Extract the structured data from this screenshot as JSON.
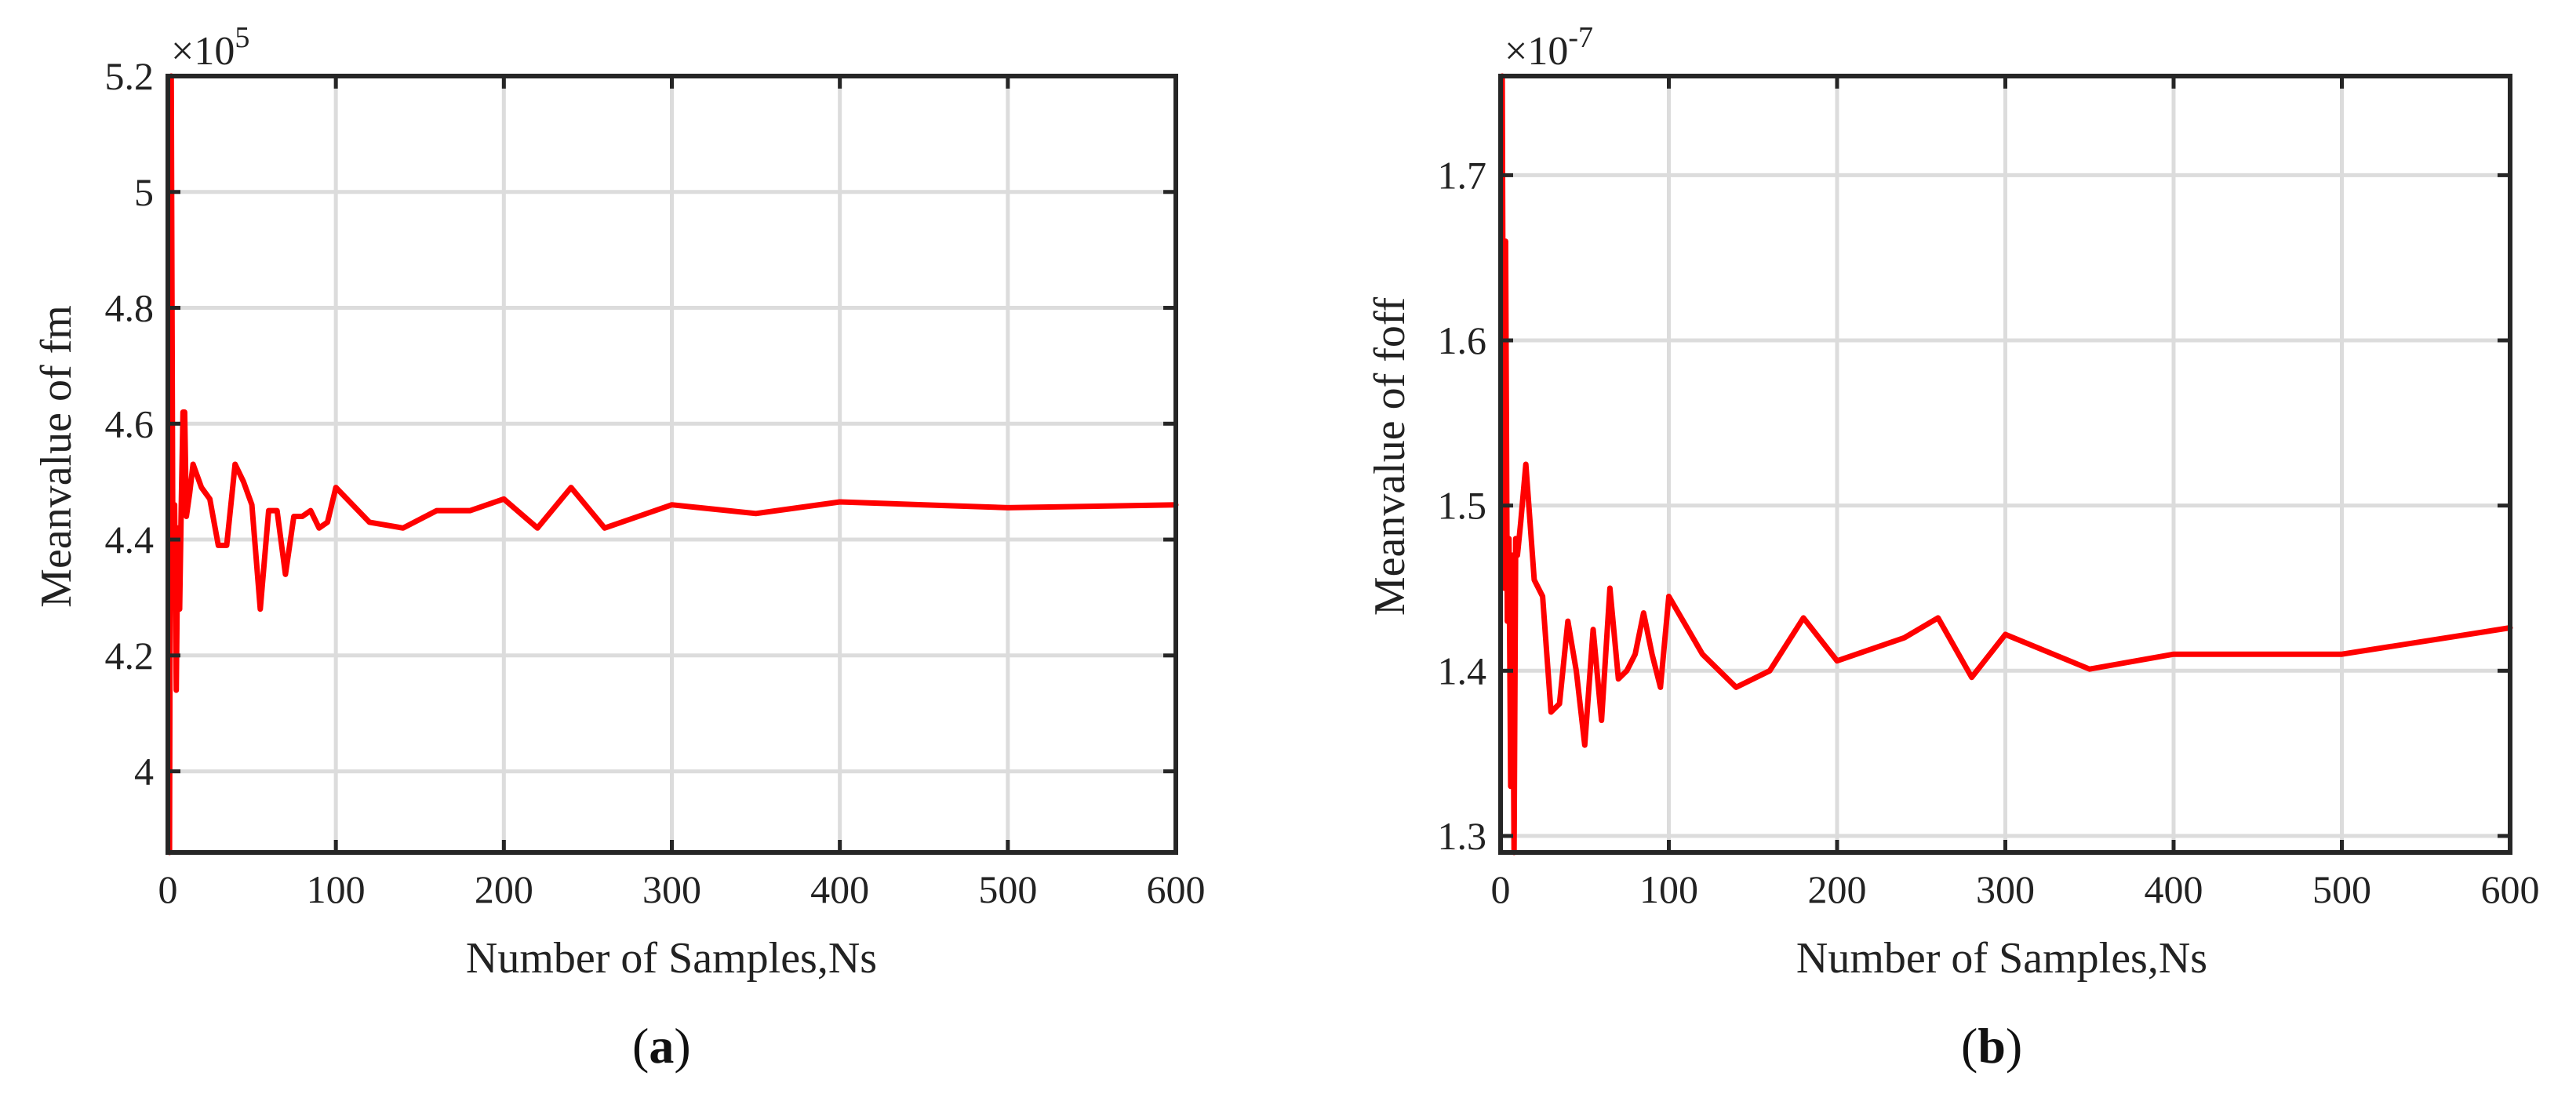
{
  "chart_data": [
    {
      "type": "line",
      "panel_label": "a",
      "xlabel": "Number of Samples,Ns",
      "ylabel": "Meanvalue of fm",
      "y_exponent_base": "×10",
      "y_exponent_power": "5",
      "xlim": [
        0,
        600
      ],
      "ylim": [
        3.86,
        5.2
      ],
      "grid": true,
      "xticks": [
        0,
        100,
        200,
        300,
        400,
        500,
        600
      ],
      "xtick_labels": [
        "0",
        "100",
        "200",
        "300",
        "400",
        "500",
        "600"
      ],
      "yticks": [
        4.0,
        4.2,
        4.4,
        4.6,
        4.8,
        5.0,
        5.2
      ],
      "ytick_labels": [
        "4",
        "4.2",
        "4.4",
        "4.6",
        "4.8",
        "5",
        "5.2"
      ],
      "series": [
        {
          "name": "mean fm",
          "color": "#ff0000",
          "x": [
            1,
            2,
            3,
            4,
            5,
            6,
            7,
            8,
            9,
            10,
            11,
            13,
            15,
            20,
            25,
            30,
            35,
            40,
            45,
            50,
            55,
            60,
            65,
            70,
            75,
            80,
            85,
            90,
            95,
            100,
            120,
            140,
            160,
            180,
            200,
            220,
            240,
            260,
            280,
            300,
            350,
            400,
            450,
            500,
            600
          ],
          "values": [
            3.86,
            5.2,
            4.35,
            4.46,
            4.14,
            4.42,
            4.28,
            4.46,
            4.62,
            4.62,
            4.44,
            4.48,
            4.53,
            4.49,
            4.47,
            4.39,
            4.39,
            4.53,
            4.5,
            4.46,
            4.28,
            4.45,
            4.45,
            4.34,
            4.44,
            4.44,
            4.45,
            4.42,
            4.43,
            4.49,
            4.43,
            4.42,
            4.45,
            4.45,
            4.47,
            4.42,
            4.49,
            4.42,
            4.44,
            4.46,
            4.445,
            4.465,
            4.46,
            4.455,
            4.46
          ]
        }
      ]
    },
    {
      "type": "line",
      "panel_label": "b",
      "xlabel": "Number of Samples,Ns",
      "ylabel": "Meanvalue of foff",
      "y_exponent_base": "×10",
      "y_exponent_power": "-7",
      "xlim": [
        0,
        600
      ],
      "ylim": [
        1.29,
        1.76
      ],
      "grid": true,
      "xticks": [
        0,
        100,
        200,
        300,
        400,
        500,
        600
      ],
      "xtick_labels": [
        "0",
        "100",
        "200",
        "300",
        "400",
        "500",
        "600"
      ],
      "yticks": [
        1.3,
        1.4,
        1.5,
        1.6,
        1.7
      ],
      "ytick_labels": [
        "1.3",
        "1.4",
        "1.5",
        "1.6",
        "1.7"
      ],
      "series": [
        {
          "name": "mean foff",
          "color": "#ff0000",
          "x": [
            1,
            2,
            3,
            4,
            5,
            6,
            7,
            8,
            9,
            10,
            12,
            15,
            20,
            25,
            30,
            35,
            40,
            45,
            50,
            55,
            60,
            65,
            70,
            75,
            80,
            85,
            90,
            95,
            100,
            120,
            140,
            160,
            180,
            200,
            240,
            260,
            280,
            300,
            350,
            400,
            500,
            600
          ],
          "values": [
            1.76,
            1.45,
            1.66,
            1.43,
            1.48,
            1.33,
            1.47,
            1.29,
            1.48,
            1.47,
            1.49,
            1.525,
            1.455,
            1.445,
            1.375,
            1.38,
            1.43,
            1.4,
            1.355,
            1.425,
            1.37,
            1.45,
            1.395,
            1.4,
            1.41,
            1.435,
            1.41,
            1.39,
            1.445,
            1.41,
            1.39,
            1.4,
            1.432,
            1.406,
            1.42,
            1.432,
            1.396,
            1.422,
            1.401,
            1.41,
            1.41,
            1.426
          ]
        }
      ]
    }
  ]
}
